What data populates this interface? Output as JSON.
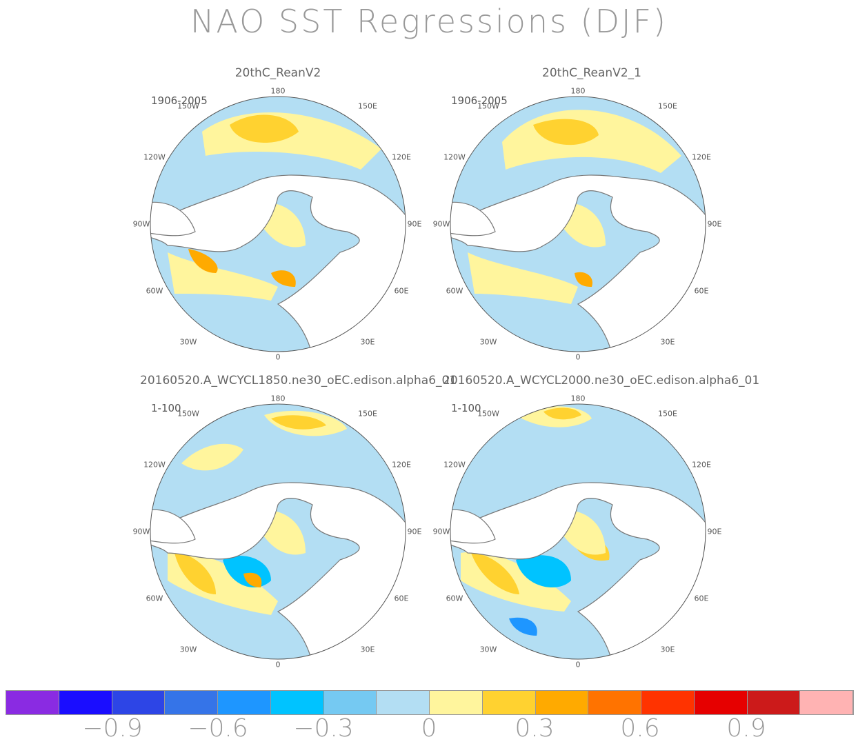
{
  "title": "NAO SST Regressions (DJF)",
  "panels": [
    {
      "title": "20thC_ReanV2",
      "years": "1906-2005"
    },
    {
      "title": "20thC_ReanV2_1",
      "years": "1906-2005"
    },
    {
      "title": "20160520.A_WCYCL1850.ne30_oEC.edison.alpha6_01",
      "years": "1-100"
    },
    {
      "title": "20160520.A_WCYCL2000.ne30_oEC.edison.alpha6_01",
      "years": "1-100"
    }
  ],
  "lon_labels": {
    "top": "180",
    "tl": "150W",
    "tr": "150E",
    "ul": "120W",
    "ur": "120E",
    "ml": "90W",
    "mr": "90E",
    "ll": "60W",
    "lr": "60E",
    "bl": "30W",
    "br": "30E",
    "bottom": "0"
  },
  "chart_data": {
    "type": "heatmap",
    "title": "NAO SST Regressions (DJF)",
    "colorbar": {
      "colors": [
        "#8a2be2",
        "#1a0dff",
        "#2d45e6",
        "#3574e8",
        "#1e96ff",
        "#00c3ff",
        "#75c9f2",
        "#b3def3",
        "#fff59d",
        "#ffd230",
        "#ffaa00",
        "#ff7300",
        "#ff3300",
        "#e60000",
        "#cc1a1a",
        "#ffb3b3"
      ],
      "tick_labels": [
        "-0.9",
        "-0.6",
        "-0.3",
        "0",
        "0.3",
        "0.6",
        "0.9"
      ],
      "tick_values": [
        -0.9,
        -0.6,
        -0.3,
        0,
        0.3,
        0.6,
        0.9
      ]
    }
  }
}
